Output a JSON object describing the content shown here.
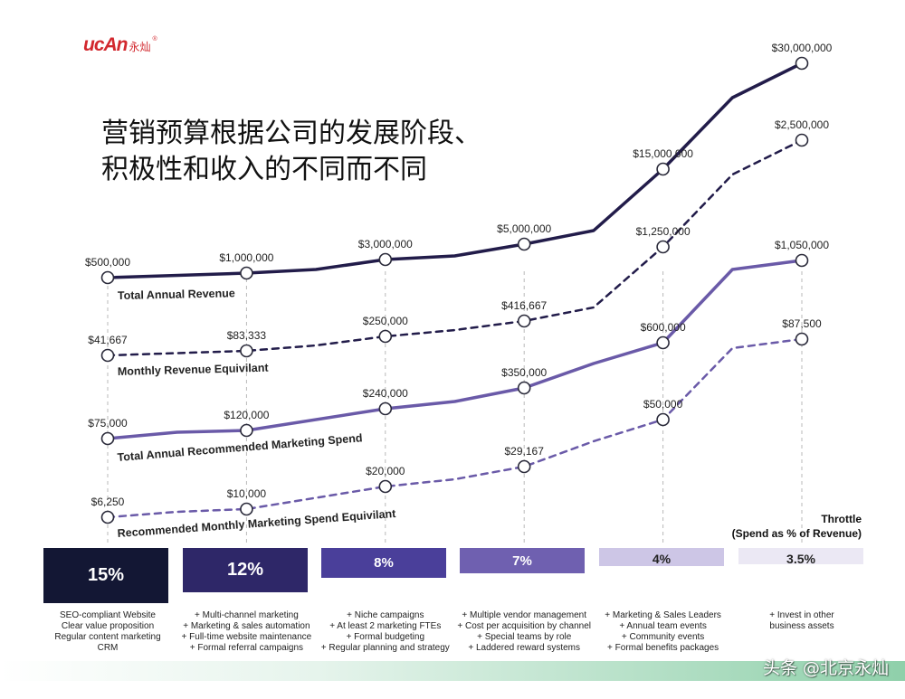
{
  "logo": {
    "mark": "ucAn",
    "chinese": "永灿",
    "registered": "®"
  },
  "headline": {
    "line1": "营销预算根据公司的发展阶段、",
    "line2": "积极性和收入的不同而不同"
  },
  "chart_data": {
    "type": "line",
    "stages": 6,
    "series": [
      {
        "name": "Total Annual Revenue",
        "style": "solid",
        "color": "#221c4a",
        "points": [
          [
            0,
            500000
          ],
          [
            1,
            1000000
          ],
          [
            1.5,
            1500000
          ],
          [
            2,
            3000000
          ],
          [
            2.5,
            3500000
          ],
          [
            3,
            5000000
          ],
          [
            3.5,
            6000000
          ],
          [
            4,
            15000000
          ],
          [
            4.5,
            25000000
          ],
          [
            5,
            30000000
          ]
        ],
        "markers": [
          {
            "stage": 0,
            "value": 500000,
            "label": "$500,000"
          },
          {
            "stage": 1,
            "value": 1000000,
            "label": "$1,000,000"
          },
          {
            "stage": 2,
            "value": 3000000,
            "label": "$3,000,000"
          },
          {
            "stage": 3,
            "value": 5000000,
            "label": "$5,000,000"
          },
          {
            "stage": 4,
            "value": 15000000,
            "label": "$15,000,000"
          },
          {
            "stage": 5,
            "value": 30000000,
            "label": "$30,000,000"
          }
        ]
      },
      {
        "name": "Monthly Revenue Equivilant",
        "style": "dashed",
        "color": "#221c4a",
        "points": [
          [
            0,
            41667
          ],
          [
            1,
            83333
          ],
          [
            1.5,
            125000
          ],
          [
            2,
            250000
          ],
          [
            2.5,
            291667
          ],
          [
            3,
            416667
          ],
          [
            3.5,
            500000
          ],
          [
            4,
            1250000
          ],
          [
            4.5,
            2083333
          ],
          [
            5,
            2500000
          ]
        ],
        "markers": [
          {
            "stage": 0,
            "value": 41667,
            "label": "$41,667"
          },
          {
            "stage": 1,
            "value": 83333,
            "label": "$83,333"
          },
          {
            "stage": 2,
            "value": 250000,
            "label": "$250,000"
          },
          {
            "stage": 3,
            "value": 416667,
            "label": "$416,667"
          },
          {
            "stage": 4,
            "value": 1250000,
            "label": "$1,250,000"
          },
          {
            "stage": 5,
            "value": 2500000,
            "label": "$2,500,000"
          }
        ]
      },
      {
        "name": "Total Annual Recommended Marketing Spend",
        "style": "solid",
        "color": "#6a5aa8",
        "points": [
          [
            0,
            75000
          ],
          [
            0.5,
            100000
          ],
          [
            1,
            120000
          ],
          [
            2,
            240000
          ],
          [
            2.5,
            280000
          ],
          [
            3,
            350000
          ],
          [
            3.5,
            480000
          ],
          [
            4,
            600000
          ],
          [
            4.5,
            1000000
          ],
          [
            5,
            1050000
          ]
        ],
        "markers": [
          {
            "stage": 0,
            "value": 75000,
            "label": "$75,000"
          },
          {
            "stage": 1,
            "value": 120000,
            "label": "$120,000"
          },
          {
            "stage": 2,
            "value": 240000,
            "label": "$240,000"
          },
          {
            "stage": 3,
            "value": 350000,
            "label": "$350,000"
          },
          {
            "stage": 4,
            "value": 600000,
            "label": "$600,000"
          },
          {
            "stage": 5,
            "value": 1050000,
            "label": "$1,050,000"
          }
        ]
      },
      {
        "name": "Recommended Monthly Marketing Spend Equivilant",
        "style": "dashed",
        "color": "#6a5aa8",
        "points": [
          [
            0,
            6250
          ],
          [
            0.5,
            8500
          ],
          [
            1,
            10000
          ],
          [
            2,
            20000
          ],
          [
            2.5,
            23333
          ],
          [
            3,
            29167
          ],
          [
            3.5,
            40000
          ],
          [
            4,
            50000
          ],
          [
            4.5,
            83333
          ],
          [
            5,
            87500
          ]
        ],
        "markers": [
          {
            "stage": 0,
            "value": 6250,
            "label": "$6,250"
          },
          {
            "stage": 1,
            "value": 10000,
            "label": "$10,000"
          },
          {
            "stage": 2,
            "value": 20000,
            "label": "$20,000"
          },
          {
            "stage": 3,
            "value": 29167,
            "label": "$29,167"
          },
          {
            "stage": 4,
            "value": 50000,
            "label": "$50,000"
          },
          {
            "stage": 5,
            "value": 87500,
            "label": "$87,500"
          }
        ]
      }
    ],
    "throttle": {
      "title": "Throttle",
      "subtitle": "(Spend as % of Revenue)",
      "bars": [
        {
          "label": "15%",
          "value": 15,
          "color": "#131734",
          "text_color": "#ffffff"
        },
        {
          "label": "12%",
          "value": 12,
          "color": "#2e2768",
          "text_color": "#ffffff"
        },
        {
          "label": "8%",
          "value": 8,
          "color": "#4a3f9a",
          "text_color": "#ffffff"
        },
        {
          "label": "7%",
          "value": 7,
          "color": "#6f60b0",
          "text_color": "#ffffff"
        },
        {
          "label": "4%",
          "value": 4,
          "color": "#cdc6e6",
          "text_color": "#222222"
        },
        {
          "label": "3.5%",
          "value": 3.5,
          "color": "#ebe8f4",
          "text_color": "#222222"
        }
      ]
    },
    "descriptions": [
      [
        "SEO-compliant Website",
        "Clear value proposition",
        "Regular content marketing",
        "CRM"
      ],
      [
        "+ Multi-channel marketing",
        "+ Marketing & sales automation",
        "+ Full-time website maintenance",
        "+ Formal referral campaigns"
      ],
      [
        "+ Niche campaigns",
        "+ At least 2 marketing FTEs",
        "+ Formal budgeting",
        "+ Regular planning and strategy"
      ],
      [
        "+ Multiple vendor management",
        "+ Cost per acquisition by channel",
        "+ Special teams by role",
        "+ Laddered reward systems"
      ],
      [
        "+ Marketing & Sales Leaders",
        "+ Annual team events",
        "+ Community events",
        "+ Formal benefits packages"
      ],
      [
        "+ Invest in other",
        "business assets"
      ]
    ]
  },
  "watermark": "头条 @北京永灿"
}
